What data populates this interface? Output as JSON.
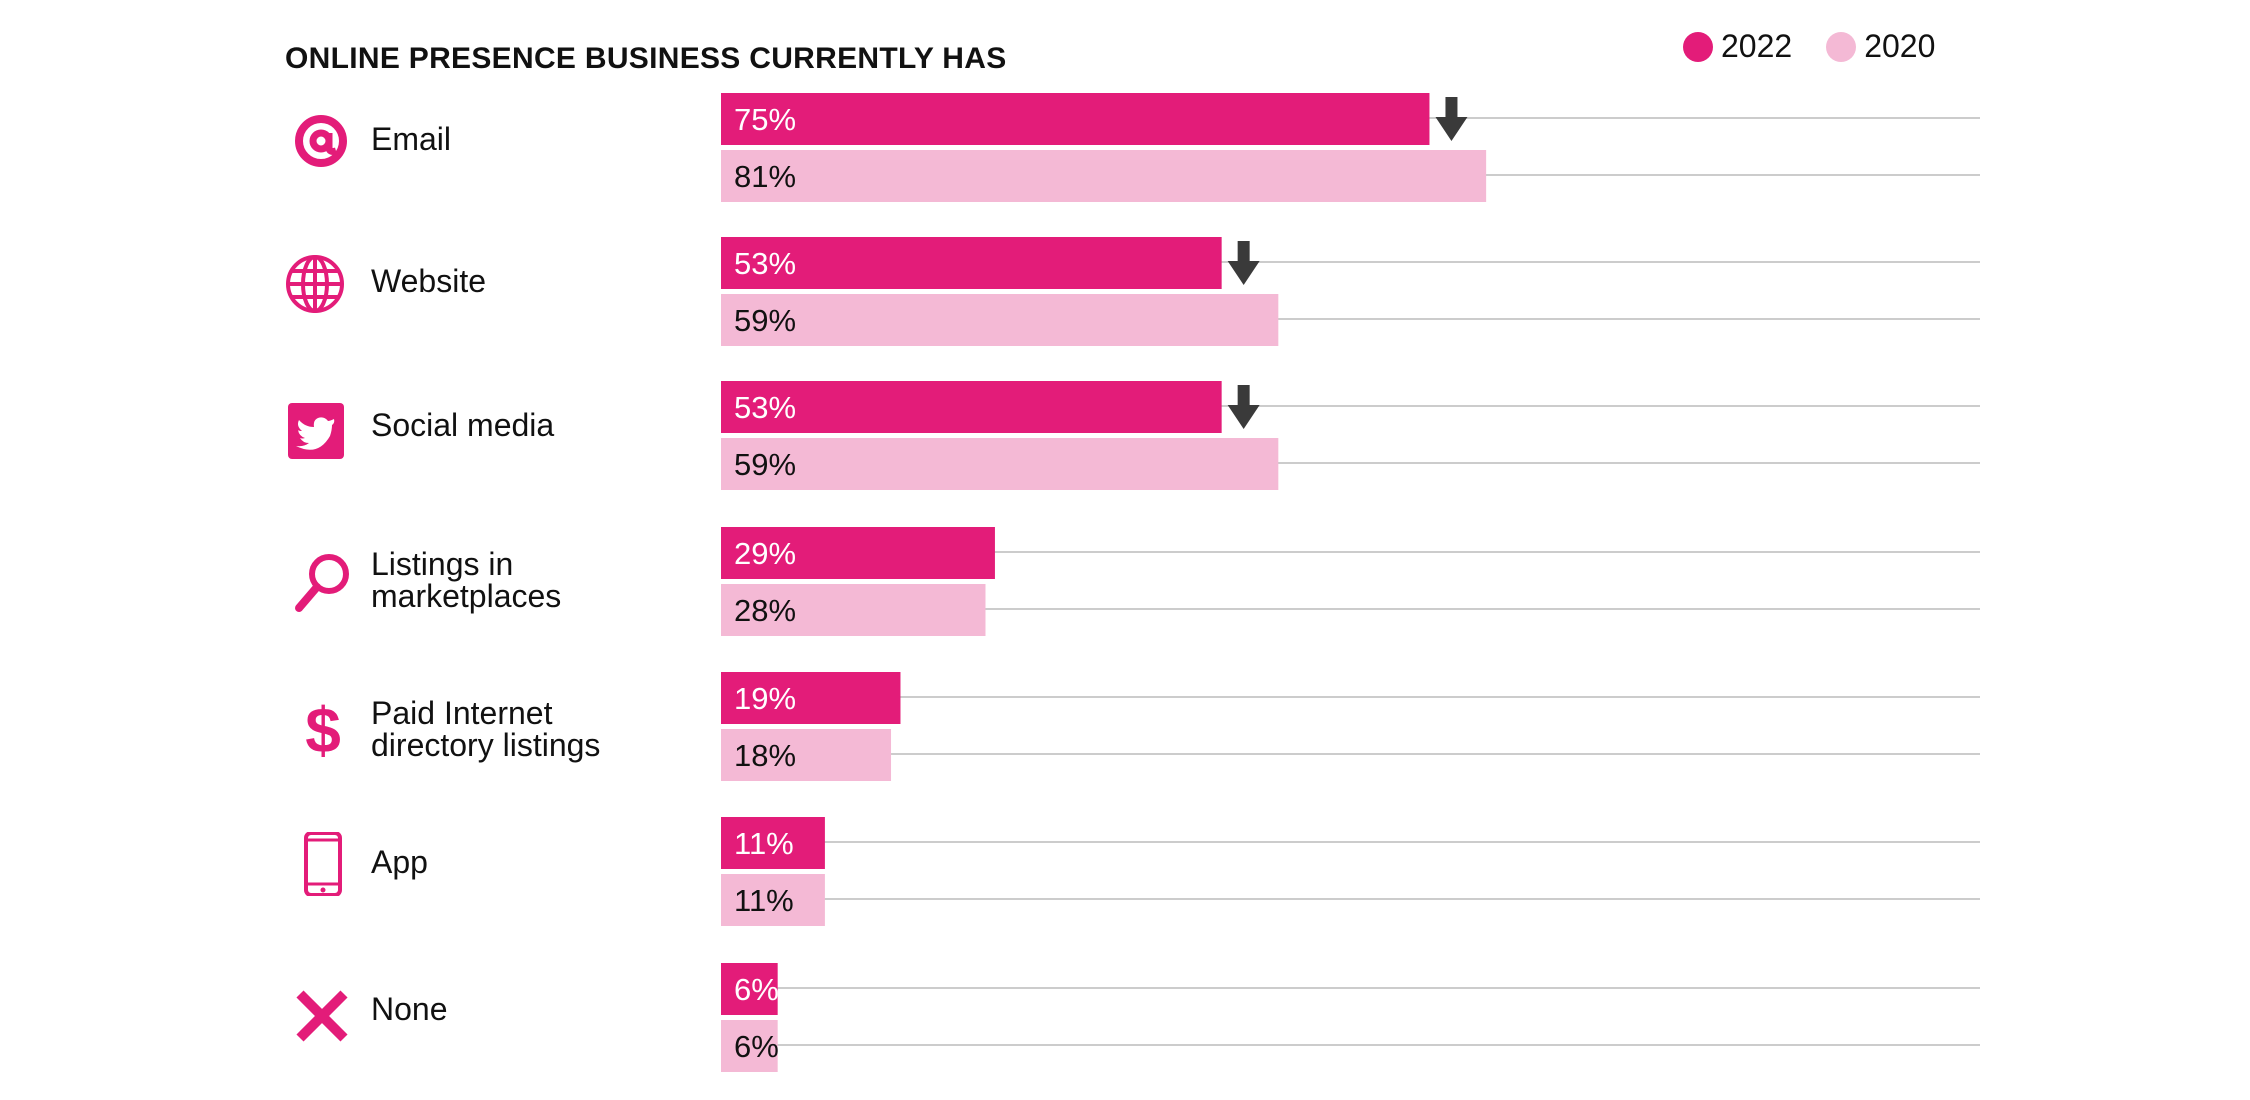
{
  "chart_data": {
    "type": "bar",
    "orientation": "horizontal",
    "title": "ONLINE PRESENCE BUSINESS CURRENTLY HAS",
    "xlabel": "",
    "ylabel": "",
    "xlim": [
      0,
      100
    ],
    "grid": true,
    "legend_position": "top-right",
    "categories": [
      "Email",
      "Website",
      "Social media",
      "Listings in\nmarketplaces",
      "Paid Internet\ndirectory listings",
      "App",
      "None"
    ],
    "icons": [
      "at-sign-icon",
      "globe-icon",
      "twitter-icon",
      "magnifier-icon",
      "dollar-icon",
      "phone-icon",
      "cross-icon"
    ],
    "series": [
      {
        "name": "2022",
        "color": "#E31C79",
        "label_color": "#ffffff",
        "values": [
          75,
          53,
          53,
          29,
          19,
          11,
          6
        ],
        "labels": [
          "75%",
          "53%",
          "53%",
          "29%",
          "19%",
          "11%",
          "6%"
        ]
      },
      {
        "name": "2020",
        "color": "#F4B9D5",
        "label_color": "#111111",
        "values": [
          81,
          59,
          59,
          28,
          18,
          11,
          6
        ],
        "labels": [
          "81%",
          "59%",
          "59%",
          "28%",
          "18%",
          "11%",
          "6%"
        ]
      }
    ],
    "decline_markers": [
      true,
      true,
      true,
      false,
      false,
      false,
      false
    ],
    "marker_color": "#3a3a3a",
    "gridline_color": "#cccccc"
  }
}
